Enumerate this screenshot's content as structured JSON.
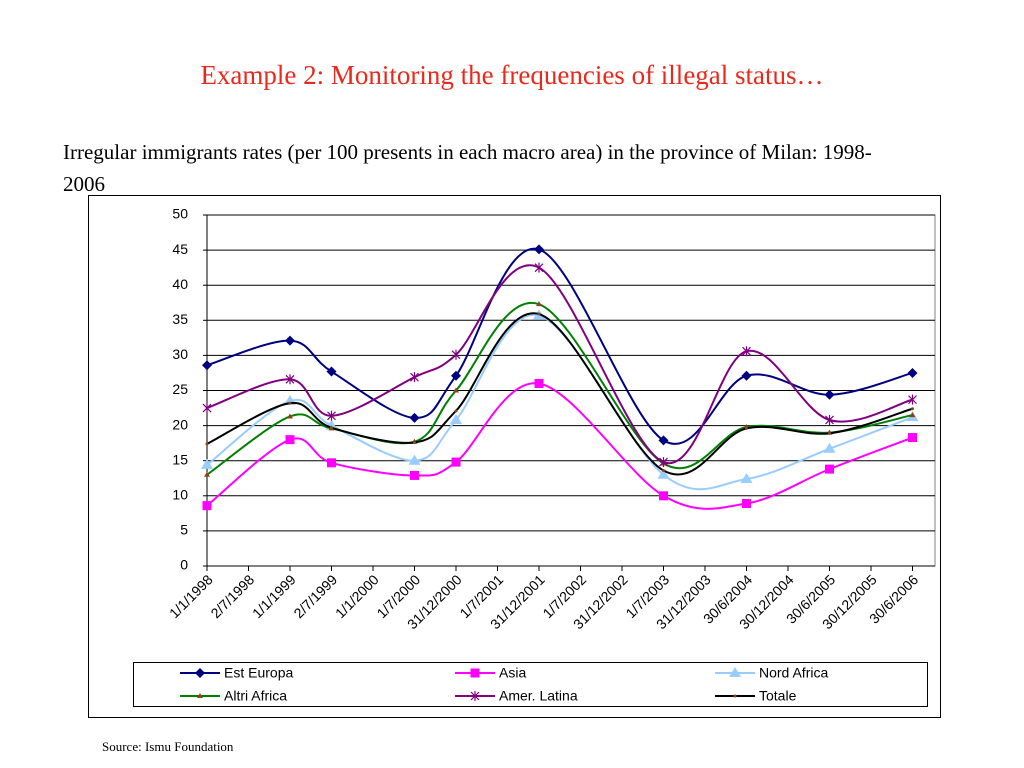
{
  "chart_data": {
    "type": "line",
    "title": "Example 2:  Monitoring the frequencies of illegal status…",
    "subtitle": "Irregular immigrants rates (per 100 presents in each macro area) in the province  of Milan: 1998-2006",
    "source": "Source: Ismu Foundation",
    "xticks": [
      "1/1/1998",
      "2/7/1998",
      "1/1/1999",
      "2/7/1999",
      "1/1/2000",
      "1/7/2000",
      "31/12/2000",
      "1/7/2001",
      "31/12/2001",
      "1/7/2002",
      "31/12/2002",
      "1/7/2003",
      "31/12/2003",
      "30/6/2004",
      "30/12/2004",
      "30/6/2005",
      "30/12/2005",
      "30/6/2006"
    ],
    "x": [
      "1/1/1998",
      "1/1/1999",
      "2/7/1999",
      "1/7/2000",
      "31/12/2000",
      "31/12/2001",
      "1/7/2003",
      "30/6/2004",
      "30/6/2005",
      "30/6/2006"
    ],
    "ylim": [
      0,
      50
    ],
    "yticks": [
      0,
      5,
      10,
      15,
      20,
      25,
      30,
      35,
      40,
      45,
      50
    ],
    "grid": true,
    "series": [
      {
        "name": "Est Europa",
        "color": "#000080",
        "marker": "diamond",
        "values": [
          28.6,
          32.1,
          27.7,
          21.1,
          27.1,
          45.1,
          17.9,
          27.1,
          24.4,
          27.5
        ]
      },
      {
        "name": "Asia",
        "color": "#ff00ff",
        "marker": "square",
        "values": [
          8.6,
          18.0,
          14.7,
          12.9,
          14.8,
          26.0,
          10.0,
          8.9,
          13.8,
          18.3
        ]
      },
      {
        "name": "Nord Africa",
        "color": "#99ccff",
        "marker": "triangle",
        "values": [
          14.4,
          23.5,
          20.0,
          15.0,
          20.8,
          35.7,
          13.0,
          12.4,
          16.7,
          21.2
        ]
      },
      {
        "name": "Altri Africa",
        "color": "#008000",
        "marker": "small-triangle",
        "values": [
          13.0,
          21.3,
          19.6,
          17.7,
          25.0,
          37.3,
          14.6,
          19.8,
          19.0,
          21.5
        ]
      },
      {
        "name": "Amer. Latina",
        "color": "#800080",
        "marker": "star",
        "values": [
          22.5,
          26.6,
          21.4,
          26.9,
          30.1,
          42.5,
          14.8,
          30.6,
          20.8,
          23.7
        ]
      },
      {
        "name": "Totale",
        "color": "#000000",
        "marker": "dot",
        "values": [
          17.4,
          23.2,
          19.7,
          17.6,
          22.1,
          35.9,
          13.6,
          19.6,
          18.9,
          22.4
        ]
      }
    ]
  }
}
